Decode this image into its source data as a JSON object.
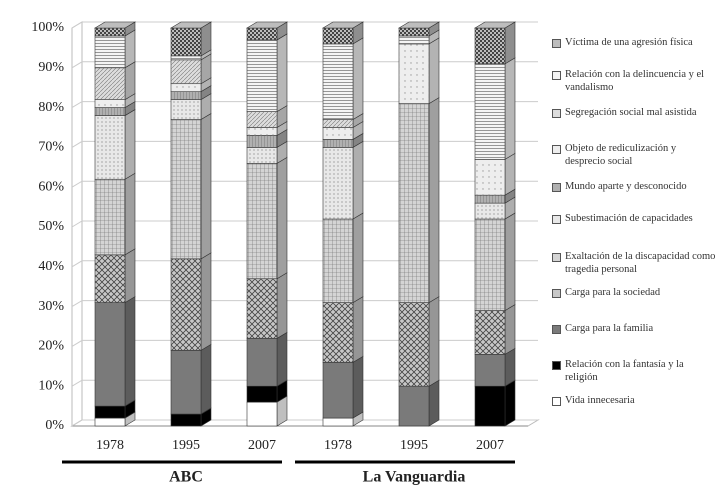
{
  "chart_data": {
    "type": "stacked-bar-3d",
    "categories": [
      "1978",
      "1995",
      "2007",
      "1978",
      "1995",
      "2007"
    ],
    "groups": [
      "ABC",
      "La Vanguardia"
    ],
    "ylim": [
      0,
      100
    ],
    "yticks": [
      {
        "value": 0,
        "label": "0%"
      },
      {
        "value": 10,
        "label": "10%"
      },
      {
        "value": 20,
        "label": "20%"
      },
      {
        "value": 30,
        "label": "30%"
      },
      {
        "value": 40,
        "label": "40%"
      },
      {
        "value": 50,
        "label": "50%"
      },
      {
        "value": 60,
        "label": "60%"
      },
      {
        "value": 70,
        "label": "70%"
      },
      {
        "value": 80,
        "label": "80%"
      },
      {
        "value": 90,
        "label": "90%"
      },
      {
        "value": 100,
        "label": "100%"
      }
    ],
    "grid": true,
    "series": [
      {
        "name": "Vida innecesaria",
        "color": "#ffffff",
        "values": [
          2,
          0,
          6,
          2,
          0,
          0
        ]
      },
      {
        "name": "Relación con la fantasía y la religión",
        "color": "#000000",
        "values": [
          3,
          3,
          4,
          0,
          0,
          10
        ]
      },
      {
        "name": "Carga para la familia",
        "color": "#7a7a7a",
        "values": [
          26,
          16,
          12,
          14,
          10,
          8
        ]
      },
      {
        "name": "Carga para la sociedad",
        "color": "#c8c8c8",
        "values": [
          12,
          23,
          15,
          15,
          21,
          11
        ]
      },
      {
        "name": "Exaltación de la discapacidad como tragedia personal",
        "color": "#d4d4d4",
        "values": [
          19,
          35,
          29,
          21,
          50,
          23
        ]
      },
      {
        "name": "Subestimación de capacidades",
        "color": "#e8e8e8",
        "values": [
          16,
          5,
          4,
          18,
          0,
          4
        ]
      },
      {
        "name": "Mundo aparte y desconocido",
        "color": "#b0b0b0",
        "values": [
          2,
          2,
          3,
          2,
          0,
          2
        ]
      },
      {
        "name": "Objeto de rediculización y desprecio social",
        "color": "#eeeeee",
        "values": [
          2,
          2,
          2,
          3,
          15,
          9
        ]
      },
      {
        "name": "Segregación social mal asistida",
        "color": "#dddddd",
        "values": [
          8,
          6,
          4,
          2,
          0,
          0
        ]
      },
      {
        "name": "Relación con la delincuencia y el vandalismo",
        "color": "#f4f4f4",
        "values": [
          8,
          1,
          18,
          19,
          2,
          24
        ]
      },
      {
        "name": "Víctima de una agresión física",
        "color": "#bdbdbd",
        "values": [
          2,
          7,
          3,
          4,
          2,
          9
        ]
      }
    ]
  }
}
